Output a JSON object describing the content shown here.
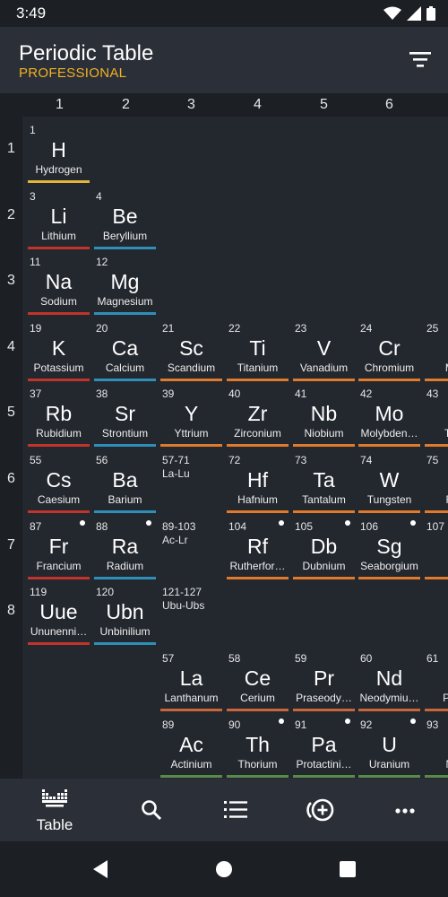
{
  "status_bar": {
    "time": "3:49",
    "icons": [
      "wifi-icon",
      "signal-icon",
      "battery-icon"
    ]
  },
  "app_bar": {
    "title": "Periodic Table",
    "subtitle": "PROFESSIONAL",
    "accent_color": "#f2b225",
    "action_icon": "filter-icon"
  },
  "group_headers": [
    "1",
    "2",
    "3",
    "4",
    "5",
    "6"
  ],
  "period_headers": [
    "1",
    "2",
    "3",
    "4",
    "5",
    "6",
    "7",
    "8"
  ],
  "category_colors": {
    "nonmetal": "#e0b73c",
    "alkali": "#c0342c",
    "alkaline": "#2f8fb8",
    "transition": "#e07a2c",
    "lanthanide": "#c8663a",
    "actinide": "#5a8a4a",
    "unknown": "#999999"
  },
  "elements": {
    "H": {
      "num": "1",
      "sym": "H",
      "name": "Hydrogen"
    },
    "Li": {
      "num": "3",
      "sym": "Li",
      "name": "Lithium"
    },
    "Be": {
      "num": "4",
      "sym": "Be",
      "name": "Beryllium"
    },
    "Na": {
      "num": "11",
      "sym": "Na",
      "name": "Sodium"
    },
    "Mg": {
      "num": "12",
      "sym": "Mg",
      "name": "Magnesium"
    },
    "K": {
      "num": "19",
      "sym": "K",
      "name": "Potassium"
    },
    "Ca": {
      "num": "20",
      "sym": "Ca",
      "name": "Calcium"
    },
    "Sc": {
      "num": "21",
      "sym": "Sc",
      "name": "Scandium"
    },
    "Ti": {
      "num": "22",
      "sym": "Ti",
      "name": "Titanium"
    },
    "V": {
      "num": "23",
      "sym": "V",
      "name": "Vanadium"
    },
    "Cr": {
      "num": "24",
      "sym": "Cr",
      "name": "Chromium"
    },
    "Mn": {
      "num": "25",
      "sym": "M",
      "name": "Man"
    },
    "Rb": {
      "num": "37",
      "sym": "Rb",
      "name": "Rubidium"
    },
    "Sr": {
      "num": "38",
      "sym": "Sr",
      "name": "Strontium"
    },
    "Y": {
      "num": "39",
      "sym": "Y",
      "name": "Yttrium"
    },
    "Zr": {
      "num": "40",
      "sym": "Zr",
      "name": "Zirconium"
    },
    "Nb": {
      "num": "41",
      "sym": "Nb",
      "name": "Niobium"
    },
    "Mo": {
      "num": "42",
      "sym": "Mo",
      "name": "Molybden…"
    },
    "Tc": {
      "num": "43",
      "sym": "",
      "name": "Tech"
    },
    "Cs": {
      "num": "55",
      "sym": "Cs",
      "name": "Caesium"
    },
    "Ba": {
      "num": "56",
      "sym": "Ba",
      "name": "Barium"
    },
    "Hf": {
      "num": "72",
      "sym": "Hf",
      "name": "Hafnium"
    },
    "Ta": {
      "num": "73",
      "sym": "Ta",
      "name": "Tantalum"
    },
    "W": {
      "num": "74",
      "sym": "W",
      "name": "Tungsten"
    },
    "Re": {
      "num": "75",
      "sym": "F",
      "name": "Rhe"
    },
    "Fr": {
      "num": "87",
      "sym": "Fr",
      "name": "Francium"
    },
    "Ra": {
      "num": "88",
      "sym": "Ra",
      "name": "Radium"
    },
    "Rf": {
      "num": "104",
      "sym": "Rf",
      "name": "Rutherfor…"
    },
    "Db": {
      "num": "105",
      "sym": "Db",
      "name": "Dubnium"
    },
    "Sg": {
      "num": "106",
      "sym": "Sg",
      "name": "Seaborgium"
    },
    "Bh": {
      "num": "107",
      "sym": "E",
      "name": "Bo"
    },
    "Uue": {
      "num": "119",
      "sym": "Uue",
      "name": "Ununenni…"
    },
    "Ubn": {
      "num": "120",
      "sym": "Ubn",
      "name": "Unbinilium"
    },
    "La": {
      "num": "57",
      "sym": "La",
      "name": "Lanthanum"
    },
    "Ce": {
      "num": "58",
      "sym": "Ce",
      "name": "Cerium"
    },
    "Pr": {
      "num": "59",
      "sym": "Pr",
      "name": "Praseody…"
    },
    "Nd": {
      "num": "60",
      "sym": "Nd",
      "name": "Neodymiu…"
    },
    "Pm": {
      "num": "61",
      "sym": "F",
      "name": "Prom"
    },
    "Ac": {
      "num": "89",
      "sym": "Ac",
      "name": "Actinium"
    },
    "Th": {
      "num": "90",
      "sym": "Th",
      "name": "Thorium"
    },
    "Pa": {
      "num": "91",
      "sym": "Pa",
      "name": "Protactini…"
    },
    "U": {
      "num": "92",
      "sym": "U",
      "name": "Uranium"
    },
    "Np": {
      "num": "93",
      "sym": "N",
      "name": "Nep"
    }
  },
  "placeholders": {
    "lanthanides": {
      "num": "57-71",
      "label": "La-Lu"
    },
    "actinides": {
      "num": "89-103",
      "label": "Ac-Lr"
    },
    "superactinides": {
      "num": "121-127",
      "label": "Ubu-Ubs"
    }
  },
  "bottom_nav": {
    "table_label": "Table",
    "items": [
      "table-icon",
      "search-icon",
      "list-icon",
      "add-circle-icon",
      "more-icon"
    ]
  },
  "system_nav": [
    "back-icon",
    "home-icon",
    "recents-icon"
  ]
}
